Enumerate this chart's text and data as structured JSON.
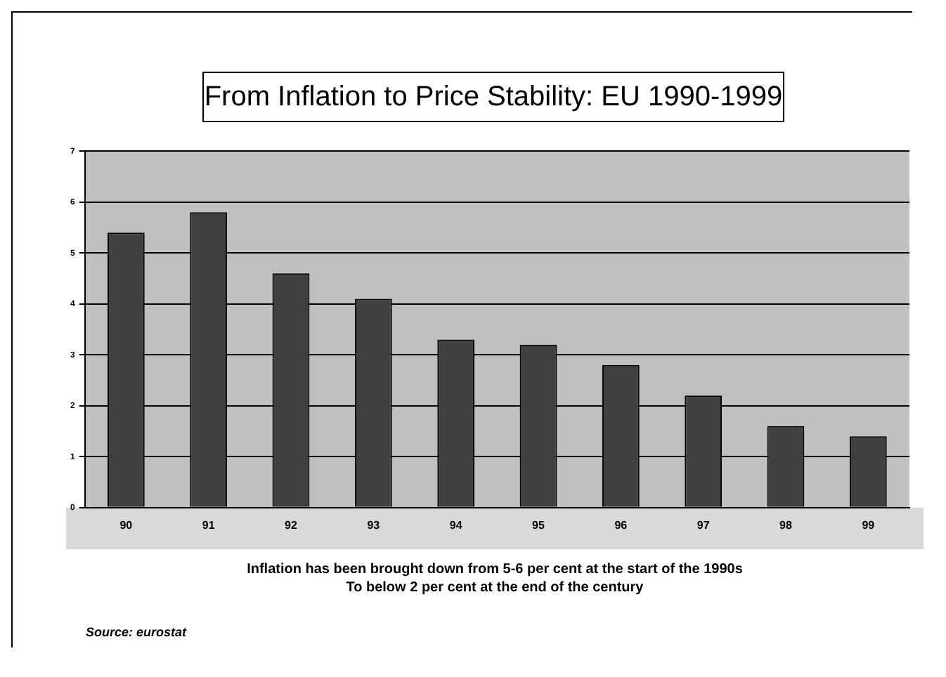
{
  "chart_data": {
    "type": "bar",
    "title": "From Inflation to Price Stability: EU 1990-1999",
    "categories": [
      "90",
      "91",
      "92",
      "93",
      "94",
      "95",
      "96",
      "97",
      "98",
      "99"
    ],
    "values": [
      5.4,
      5.8,
      4.6,
      4.1,
      3.3,
      3.2,
      2.8,
      2.2,
      1.6,
      1.4
    ],
    "color": "#404040",
    "ylim": [
      0,
      7
    ],
    "yticks": [
      0,
      1,
      2,
      3,
      4,
      5,
      6,
      7
    ],
    "grid": "y",
    "annotations": [
      "Inflation has been brought down from 5-6 per cent at the start of the 1990s",
      "To below 2 per cent at the end of the century",
      "Source: eurostat"
    ]
  }
}
